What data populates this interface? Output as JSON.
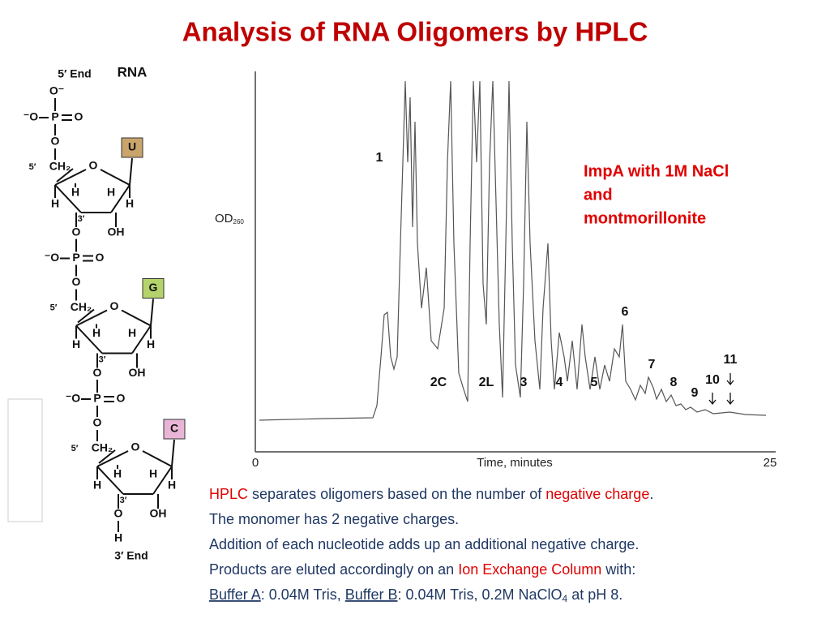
{
  "title": "Analysis of RNA Oligomers by HPLC",
  "rna": {
    "name": "RNA",
    "five_end": "5′ End",
    "three_end": "3′ End",
    "top_oxygen": "O⁻",
    "terminal_h": "H",
    "units": [
      {
        "base": "U",
        "base_color": "#c9a46b",
        "labels": [
          "⁻O",
          "P",
          "O",
          "O",
          "5′",
          "CH₂",
          "O",
          "H",
          "H",
          "H",
          "H",
          "3′",
          "O",
          "OH"
        ]
      },
      {
        "base": "G",
        "base_color": "#b5d36b",
        "labels": [
          "⁻O",
          "P",
          "O",
          "O",
          "5′",
          "CH₂",
          "O",
          "H",
          "H",
          "H",
          "H",
          "3′",
          "O",
          "OH"
        ]
      },
      {
        "base": "C",
        "base_color": "#e9b5d6",
        "labels": [
          "⁻O",
          "P",
          "O",
          "O",
          "5′",
          "CH₂",
          "O",
          "H",
          "H",
          "H",
          "H",
          "3′",
          "O",
          "OH"
        ]
      }
    ]
  },
  "chromatogram": {
    "y_label": "OD",
    "y_label_sub": "260",
    "x_start": "0",
    "x_end": "25",
    "x_label": "Time, minutes",
    "peaks": [
      "1",
      "2C",
      "2L",
      "3",
      "4",
      "5",
      "6",
      "7",
      "8",
      "9",
      "10",
      "11"
    ],
    "note": [
      "ImpA with 1M NaCl",
      "and",
      "montmorillonite"
    ]
  },
  "description": {
    "lines": [
      [
        {
          "text": "HPLC",
          "color": "#e00000"
        },
        {
          "text": " separates oligomers based on the number of "
        },
        {
          "text": "negative charge",
          "color": "#e00000"
        },
        {
          "text": "."
        }
      ],
      [
        {
          "text": "The monomer has  2 negative charges."
        }
      ],
      [
        {
          "text": "Addition of each nucleotide adds up an additional negative charge."
        }
      ],
      [
        {
          "text": "Products are eluted accordingly on an "
        },
        {
          "text": "Ion Exchange Column",
          "color": "#e00000"
        },
        {
          "text": " with:"
        }
      ],
      [
        {
          "text": "Buffer A",
          "underline": true
        },
        {
          "text": ": 0.04M Tris, "
        },
        {
          "text": "Buffer B",
          "underline": true
        },
        {
          "text": ": 0.04M Tris, 0.2M NaClO"
        },
        {
          "text": "4",
          "subscript": true
        },
        {
          "text": " at pH 8."
        }
      ]
    ]
  }
}
